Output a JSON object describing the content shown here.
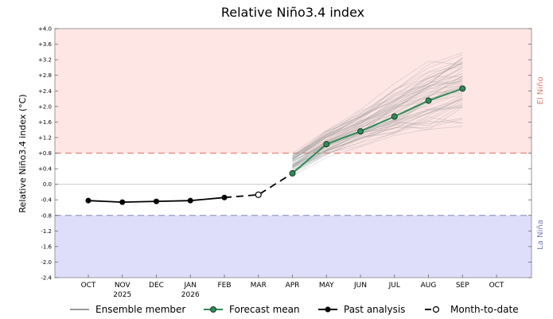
{
  "chart_data": {
    "type": "line",
    "title": "Relative Niño3.4 index",
    "ylabel": "Relative Niño3.4 index (°C)",
    "ylim": [
      -2.4,
      4.0
    ],
    "y_ticks": [
      "+4.0",
      "+3.6",
      "+3.2",
      "+2.8",
      "+2.4",
      "+2.0",
      "+1.6",
      "+1.2",
      "+0.8",
      "+0.4",
      "0.0",
      "-0.4",
      "-0.8",
      "-1.2",
      "-1.6",
      "-2.0",
      "-2.4"
    ],
    "x_ticks": [
      "OCT",
      "NOV",
      "DEC",
      "JAN",
      "FEB",
      "MAR",
      "APR",
      "MAY",
      "JUN",
      "JUL",
      "AUG",
      "SEP",
      "OCT"
    ],
    "x_sub_labels": [
      {
        "month": "NOV",
        "label": "2025"
      },
      {
        "month": "JAN",
        "label": "2026"
      }
    ],
    "regions": [
      {
        "label": "El Niño",
        "from": 0.8,
        "to": 4.0,
        "color": "#fde6e4",
        "line_color": "#e8847a"
      },
      {
        "label": "La Niña",
        "from": -2.4,
        "to": -0.8,
        "color": "#dedefb",
        "line_color": "#9a9acc"
      }
    ],
    "grid": false,
    "legend_position": "bottom",
    "series": [
      {
        "name": "Past analysis",
        "months": [
          "OCT",
          "NOV",
          "DEC",
          "JAN",
          "FEB"
        ],
        "values": [
          -0.42,
          -0.46,
          -0.44,
          -0.42,
          -0.34
        ],
        "color": "#000000"
      },
      {
        "name": "Month-to-date",
        "months": [
          "FEB",
          "MAR",
          "APR"
        ],
        "values": [
          -0.34,
          -0.27,
          0.28
        ],
        "color": "#000000"
      },
      {
        "name": "Forecast mean",
        "months": [
          "APR",
          "MAY",
          "JUN",
          "JUL",
          "AUG",
          "SEP"
        ],
        "values": [
          0.28,
          1.03,
          1.36,
          1.74,
          2.15,
          2.46
        ],
        "color": "#2e8b57"
      },
      {
        "name": "Ensemble member",
        "months": [
          "APR",
          "MAY",
          "JUN",
          "JUL",
          "AUG",
          "SEP"
        ],
        "spread_low": [
          0.2,
          0.65,
          0.95,
          1.15,
          1.3,
          1.45
        ],
        "spread_high": [
          0.85,
          1.45,
          1.95,
          2.6,
          3.2,
          3.6
        ],
        "color": "#999999"
      }
    ]
  }
}
